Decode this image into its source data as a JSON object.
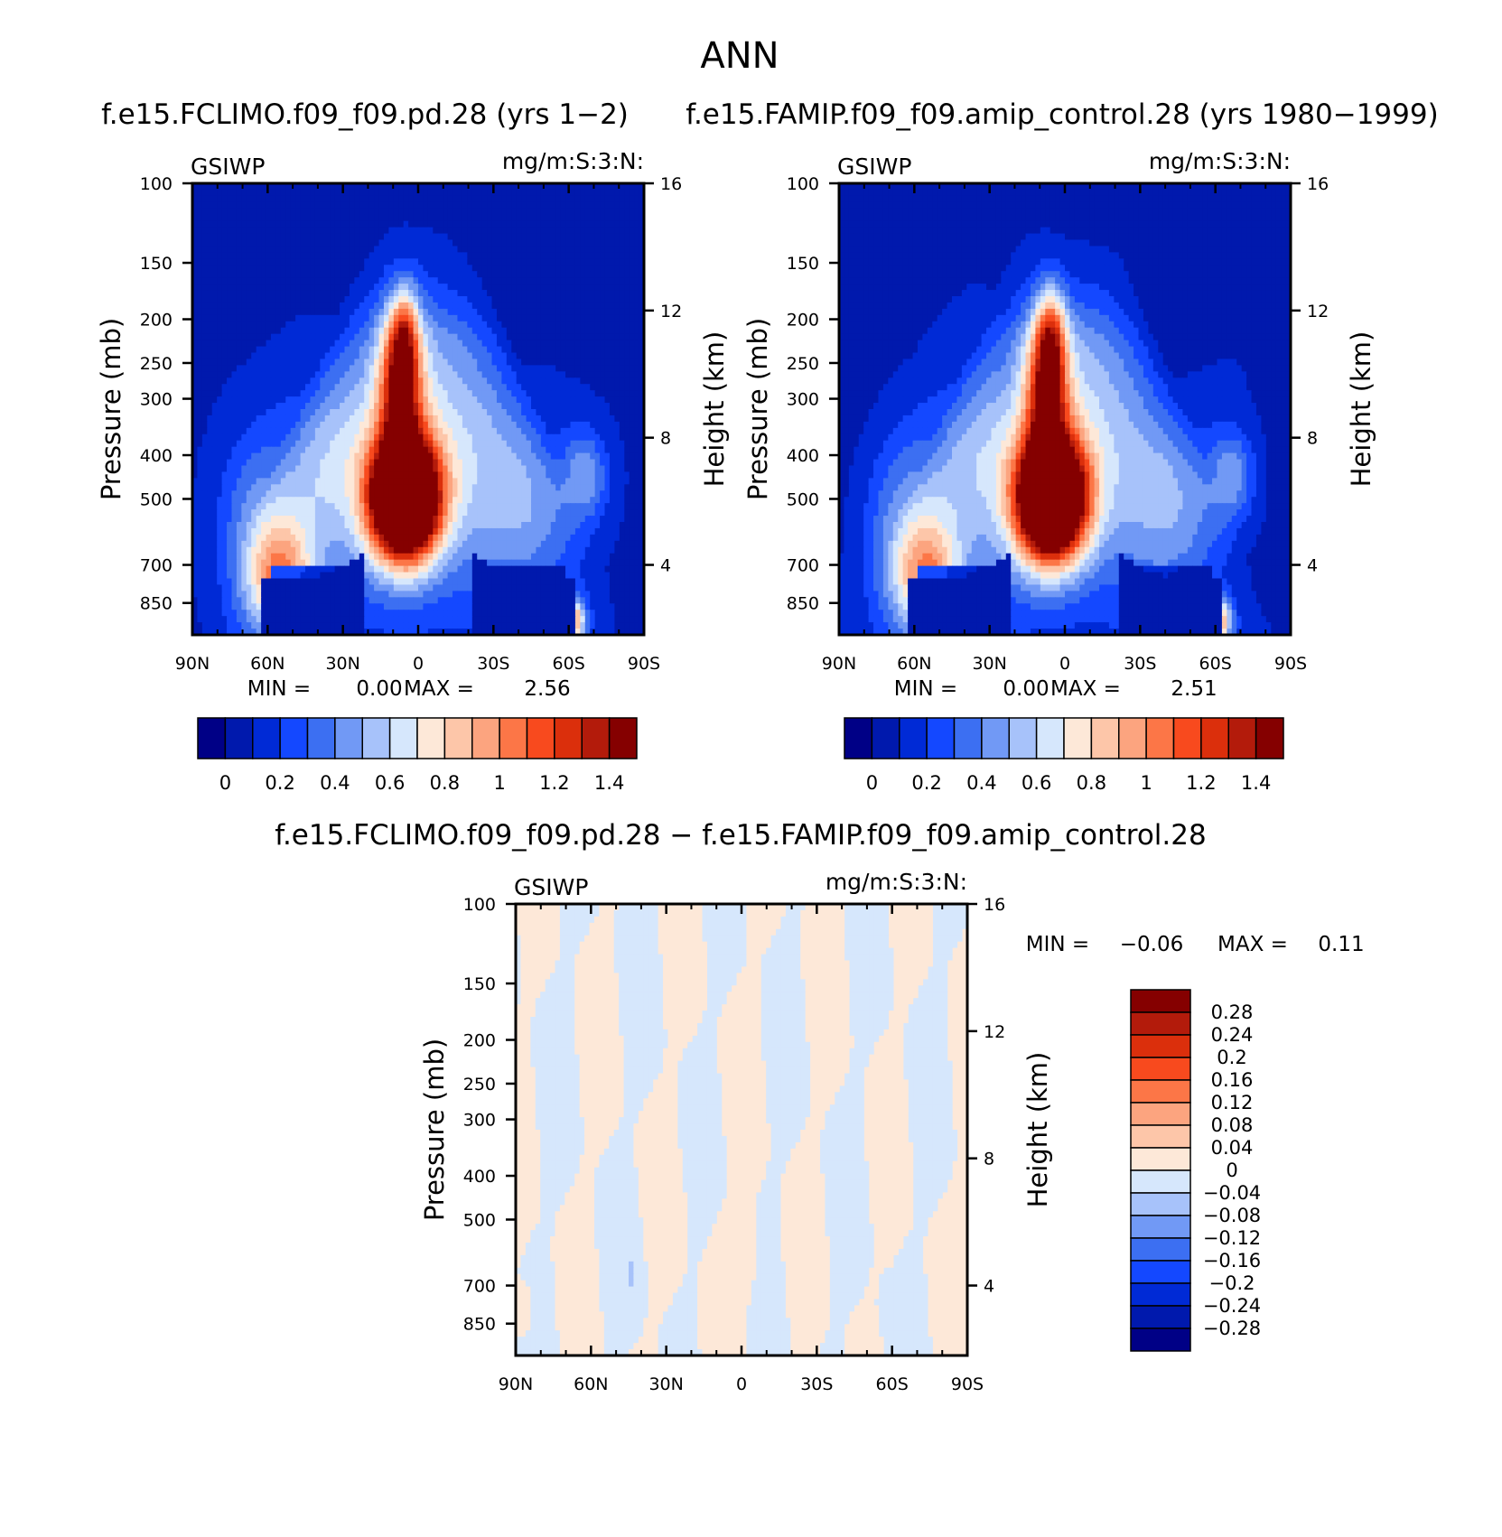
{
  "figure_title": "ANN",
  "chart_data": [
    {
      "type": "heatmap",
      "title": "f.e15.FCLIMO.f09_f09.pd.28 (yrs 1-2)",
      "variable": "GSIWP",
      "units": "mg/m:S:3:N:",
      "xlabel": "",
      "ylabel": "Pressure (mb)",
      "y2label": "Height (km)",
      "x_ticks": [
        "90N",
        "60N",
        "30N",
        "0",
        "30S",
        "60S",
        "90S"
      ],
      "y_ticks": [
        100,
        150,
        200,
        250,
        300,
        400,
        500,
        700,
        850
      ],
      "y2_ticks": [
        16,
        12,
        8,
        4
      ],
      "ylim": [
        100,
        1000
      ],
      "min_label": "MIN =",
      "min_value": "0.00",
      "max_label": "MAX =",
      "max_value": "2.56",
      "colorbar": {
        "levels": [
          0,
          0.1,
          0.2,
          0.3,
          0.4,
          0.5,
          0.6,
          0.7,
          0.8,
          0.9,
          1,
          1.1,
          1.2,
          1.3,
          1.4
        ],
        "tick_labels": [
          "0",
          "0.2",
          "0.4",
          "0.6",
          "0.8",
          "1",
          "1.2",
          "1.4"
        ],
        "colors": [
          "#000086",
          "#0019ad",
          "#002ad6",
          "#1448ff",
          "#3c6ff2",
          "#7199f5",
          "#a7c2fa",
          "#d6e7fc",
          "#fde8d8",
          "#fdc6a9",
          "#fca47f",
          "#fc7647",
          "#f84a1e",
          "#db2f0c",
          "#b31b0b",
          "#850000"
        ]
      }
    },
    {
      "type": "heatmap",
      "title": "f.e15.FAMIP.f09_f09.amip_control.28 (yrs 1980-1999)",
      "variable": "GSIWP",
      "units": "mg/m:S:3:N:",
      "xlabel": "",
      "ylabel": "Pressure (mb)",
      "y2label": "Height (km)",
      "x_ticks": [
        "90N",
        "60N",
        "30N",
        "0",
        "30S",
        "60S",
        "90S"
      ],
      "y_ticks": [
        100,
        150,
        200,
        250,
        300,
        400,
        500,
        700,
        850
      ],
      "y2_ticks": [
        16,
        12,
        8,
        4
      ],
      "ylim": [
        100,
        1000
      ],
      "min_label": "MIN =",
      "min_value": "0.00",
      "max_label": "MAX =",
      "max_value": "2.51",
      "colorbar": {
        "levels": [
          0,
          0.1,
          0.2,
          0.3,
          0.4,
          0.5,
          0.6,
          0.7,
          0.8,
          0.9,
          1,
          1.1,
          1.2,
          1.3,
          1.4
        ],
        "tick_labels": [
          "0",
          "0.2",
          "0.4",
          "0.6",
          "0.8",
          "1",
          "1.2",
          "1.4"
        ],
        "colors": [
          "#000086",
          "#0019ad",
          "#002ad6",
          "#1448ff",
          "#3c6ff2",
          "#7199f5",
          "#a7c2fa",
          "#d6e7fc",
          "#fde8d8",
          "#fdc6a9",
          "#fca47f",
          "#fc7647",
          "#f84a1e",
          "#db2f0c",
          "#b31b0b",
          "#850000"
        ]
      }
    },
    {
      "type": "heatmap",
      "title": "f.e15.FCLIMO.f09_f09.pd.28 - f.e15.FAMIP.f09_f09.amip_control.28",
      "variable": "GSIWP",
      "units": "mg/m:S:3:N:",
      "xlabel": "",
      "ylabel": "Pressure (mb)",
      "y2label": "Height (km)",
      "x_ticks": [
        "90N",
        "60N",
        "30N",
        "0",
        "30S",
        "60S",
        "90S"
      ],
      "y_ticks": [
        100,
        150,
        200,
        250,
        300,
        400,
        500,
        700,
        850
      ],
      "y2_ticks": [
        16,
        12,
        8,
        4
      ],
      "ylim": [
        100,
        1000
      ],
      "min_label": "MIN =",
      "min_value": "-0.06",
      "max_label": "MAX =",
      "max_value": "0.11",
      "colorbar": {
        "orientation": "vertical",
        "tick_labels": [
          "0.28",
          "0.24",
          "0.2",
          "0.16",
          "0.12",
          "0.08",
          "0.04",
          "0",
          "-0.04",
          "-0.08",
          "-0.12",
          "-0.16",
          "-0.2",
          "-0.24",
          "-0.28"
        ],
        "colors": [
          "#850000",
          "#b31b0b",
          "#db2f0c",
          "#f84a1e",
          "#fc7647",
          "#fca47f",
          "#fdc6a9",
          "#fde8d8",
          "#d6e7fc",
          "#a7c2fa",
          "#7199f5",
          "#3c6ff2",
          "#1448ff",
          "#002ad6",
          "#0019ad",
          "#000086"
        ]
      }
    }
  ]
}
